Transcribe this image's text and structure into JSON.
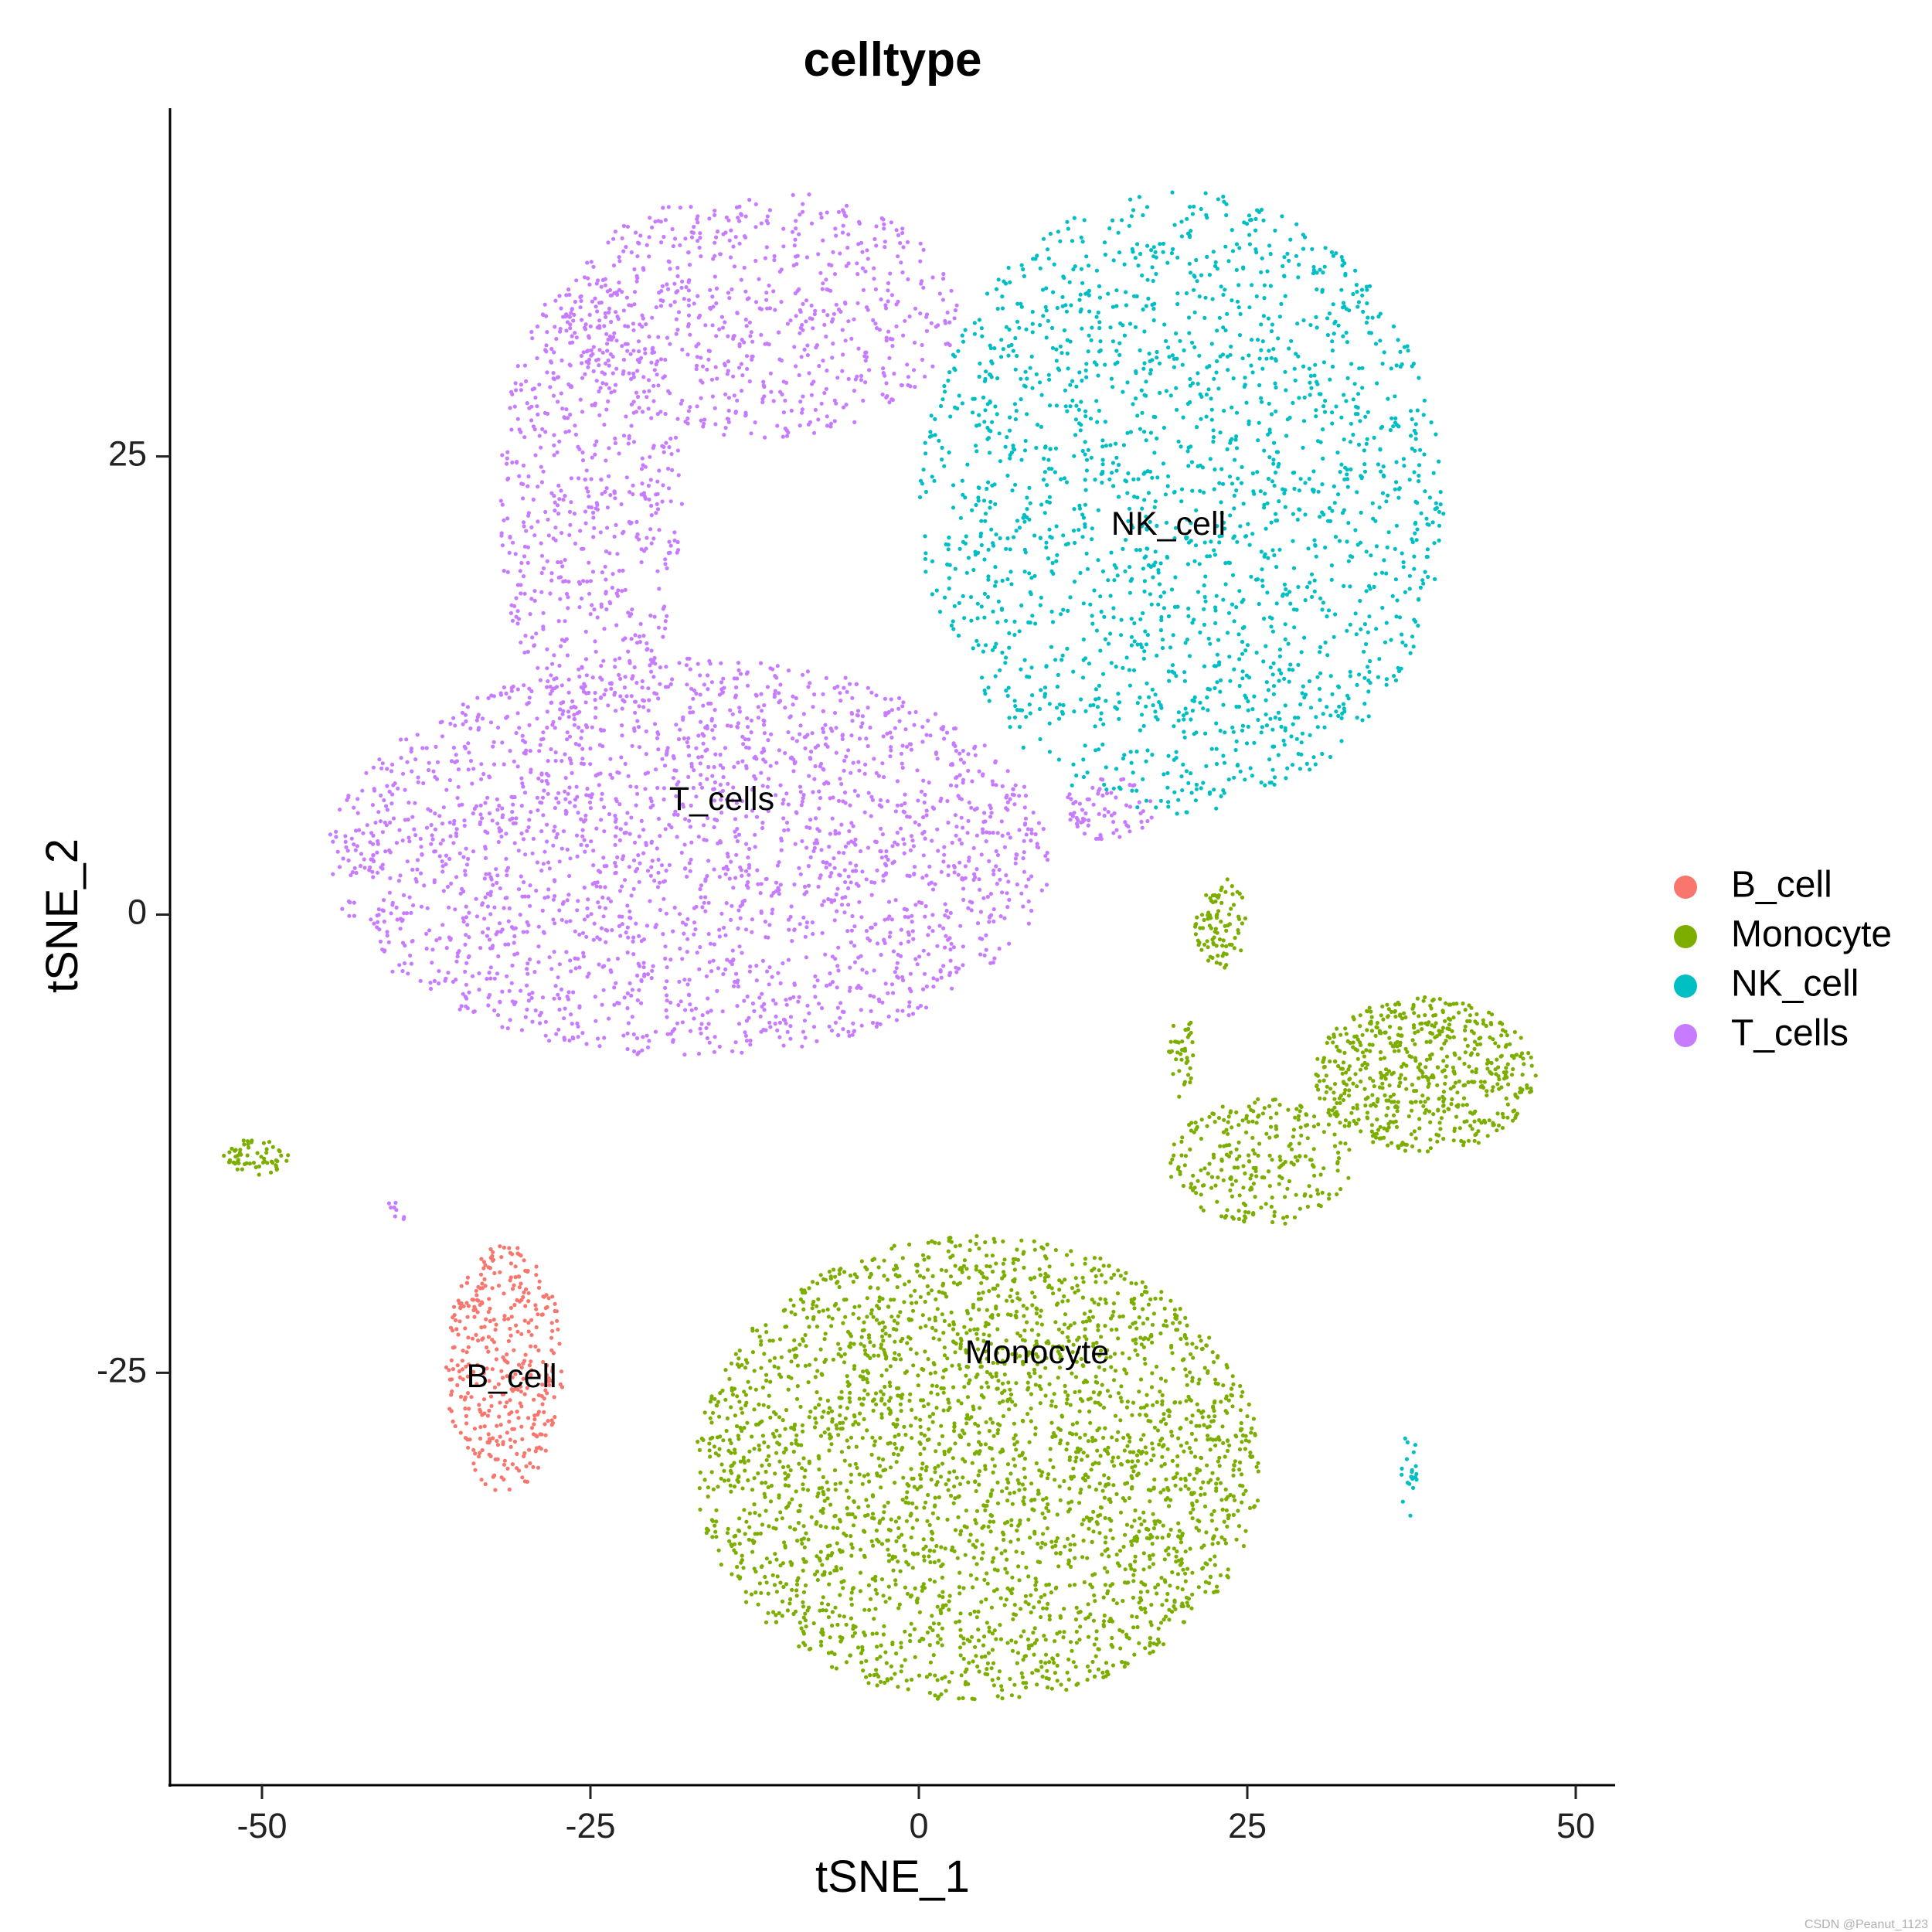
{
  "chart_data": {
    "type": "scatter",
    "title": "celltype",
    "xlabel": "tSNE_1",
    "ylabel": "tSNE_2",
    "xlim": [
      -57,
      53
    ],
    "ylim": [
      -47.5,
      44
    ],
    "xticks": [
      -50,
      -25,
      0,
      25,
      50
    ],
    "yticks": [
      -25,
      0,
      25
    ],
    "grid": false,
    "legend_position": "right",
    "series": [
      {
        "name": "B_cell",
        "color": "#F8766D",
        "cluster_label": "B_cell",
        "label_pos": [
          -31,
          -25.3
        ],
        "regions": [
          {
            "x": [
              -36,
              -27
            ],
            "y": [
              -31.5,
              -18
            ],
            "count": 380
          }
        ]
      },
      {
        "name": "Monocyte",
        "color": "#7CAE00",
        "cluster_label": "Monocyte",
        "label_pos": [
          9,
          -24
        ],
        "regions": [
          {
            "x": [
              -17,
              26
            ],
            "y": [
              -43,
              -17.5
            ],
            "count": 2900
          },
          {
            "x": [
              30,
              47
            ],
            "y": [
              -13,
              -4.5
            ],
            "count": 600
          },
          {
            "x": [
              19,
              33
            ],
            "y": [
              -17,
              -10
            ],
            "count": 260
          },
          {
            "x": [
              21,
              25
            ],
            "y": [
              -3,
              2
            ],
            "count": 90
          },
          {
            "x": [
              -53,
              -48
            ],
            "y": [
              -14.2,
              -12.2
            ],
            "count": 60
          },
          {
            "x": [
              19,
              21
            ],
            "y": [
              -10,
              -5
            ],
            "count": 40
          }
        ]
      },
      {
        "name": "NK_cell",
        "color": "#00BFC4",
        "cluster_label": "NK_cell",
        "label_pos": [
          19,
          21.2
        ],
        "regions": [
          {
            "x": [
              0,
              40
            ],
            "y": [
              5.5,
              39.5
            ],
            "count": 1900
          },
          {
            "x": [
              36.5,
              38
            ],
            "y": [
              -33,
              -28
            ],
            "count": 22
          },
          {
            "x": [
              20,
              21
            ],
            "y": [
              7,
              8
            ],
            "count": 2
          }
        ]
      },
      {
        "name": "T_cells",
        "color": "#C77CFF",
        "cluster_label": "T_cells",
        "label_pos": [
          -15,
          6.2
        ],
        "regions": [
          {
            "x": [
              -45,
              10
            ],
            "y": [
              -7.8,
              14
            ],
            "count": 2300
          },
          {
            "x": [
              -32,
              -18
            ],
            "y": [
              10,
              35
            ],
            "count": 600
          },
          {
            "x": [
              -27,
              3
            ],
            "y": [
              26,
              39.5
            ],
            "count": 650
          },
          {
            "x": [
              11,
              18
            ],
            "y": [
              4,
              7.5
            ],
            "count": 70
          },
          {
            "x": [
              -40.5,
              -39
            ],
            "y": [
              -17,
              -15
            ],
            "count": 8
          }
        ]
      }
    ]
  },
  "watermark": "CSDN @Peanut_1123"
}
